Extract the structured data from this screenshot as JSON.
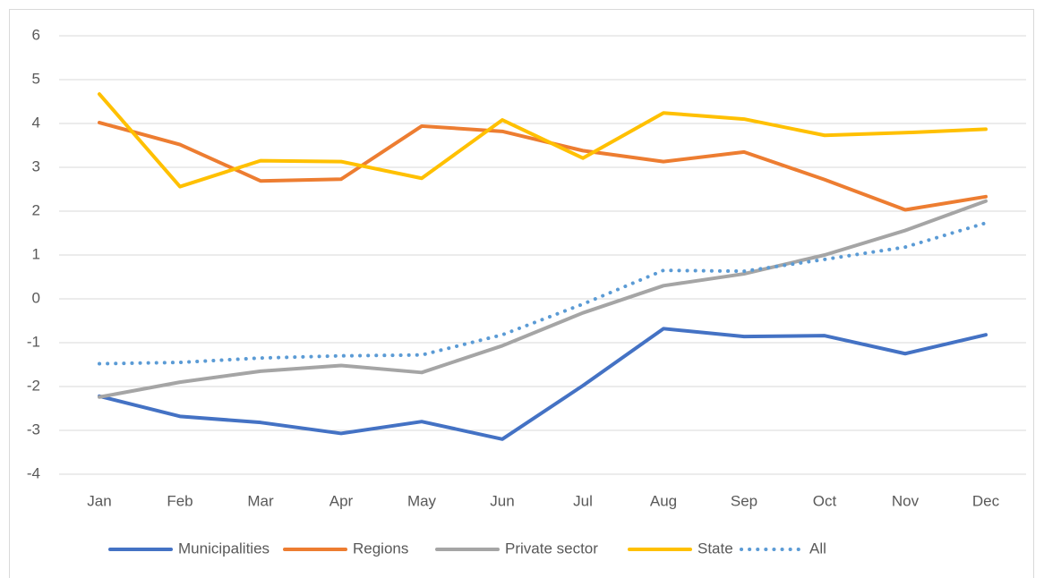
{
  "chart_data": {
    "type": "line",
    "categories": [
      "Jan",
      "Feb",
      "Mar",
      "Apr",
      "May",
      "Jun",
      "Jul",
      "Aug",
      "Sep",
      "Oct",
      "Nov",
      "Dec"
    ],
    "series": [
      {
        "name": "Municipalities",
        "color": "#4472c4",
        "style": "solid",
        "values": [
          -2.22,
          -2.68,
          -2.82,
          -3.07,
          -2.8,
          -3.2,
          -1.98,
          -0.68,
          -0.86,
          -0.84,
          -1.25,
          -0.82
        ]
      },
      {
        "name": "Regions",
        "color": "#ed7d31",
        "style": "solid",
        "values": [
          4.02,
          3.52,
          2.69,
          2.73,
          3.94,
          3.82,
          3.38,
          3.13,
          3.35,
          2.72,
          2.03,
          2.33
        ]
      },
      {
        "name": "Private sector",
        "color": "#a5a5a5",
        "style": "solid",
        "values": [
          -2.24,
          -1.9,
          -1.65,
          -1.52,
          -1.68,
          -1.07,
          -0.32,
          0.3,
          0.57,
          1.0,
          1.56,
          2.23
        ]
      },
      {
        "name": "State",
        "color": "#ffc000",
        "style": "solid",
        "values": [
          4.67,
          2.56,
          3.15,
          3.13,
          2.75,
          4.08,
          3.21,
          4.24,
          4.1,
          3.73,
          3.79,
          3.87
        ]
      },
      {
        "name": "All",
        "color": "#5b9bd5",
        "style": "dotted",
        "values": [
          -1.48,
          -1.45,
          -1.35,
          -1.3,
          -1.28,
          -0.82,
          -0.12,
          0.65,
          0.63,
          0.9,
          1.18,
          1.73
        ]
      }
    ],
    "ylim": [
      -4,
      6
    ],
    "yticks": [
      -4,
      -3,
      -2,
      -1,
      0,
      1,
      2,
      3,
      4,
      5,
      6
    ],
    "grid": true,
    "legend": "bottom"
  }
}
